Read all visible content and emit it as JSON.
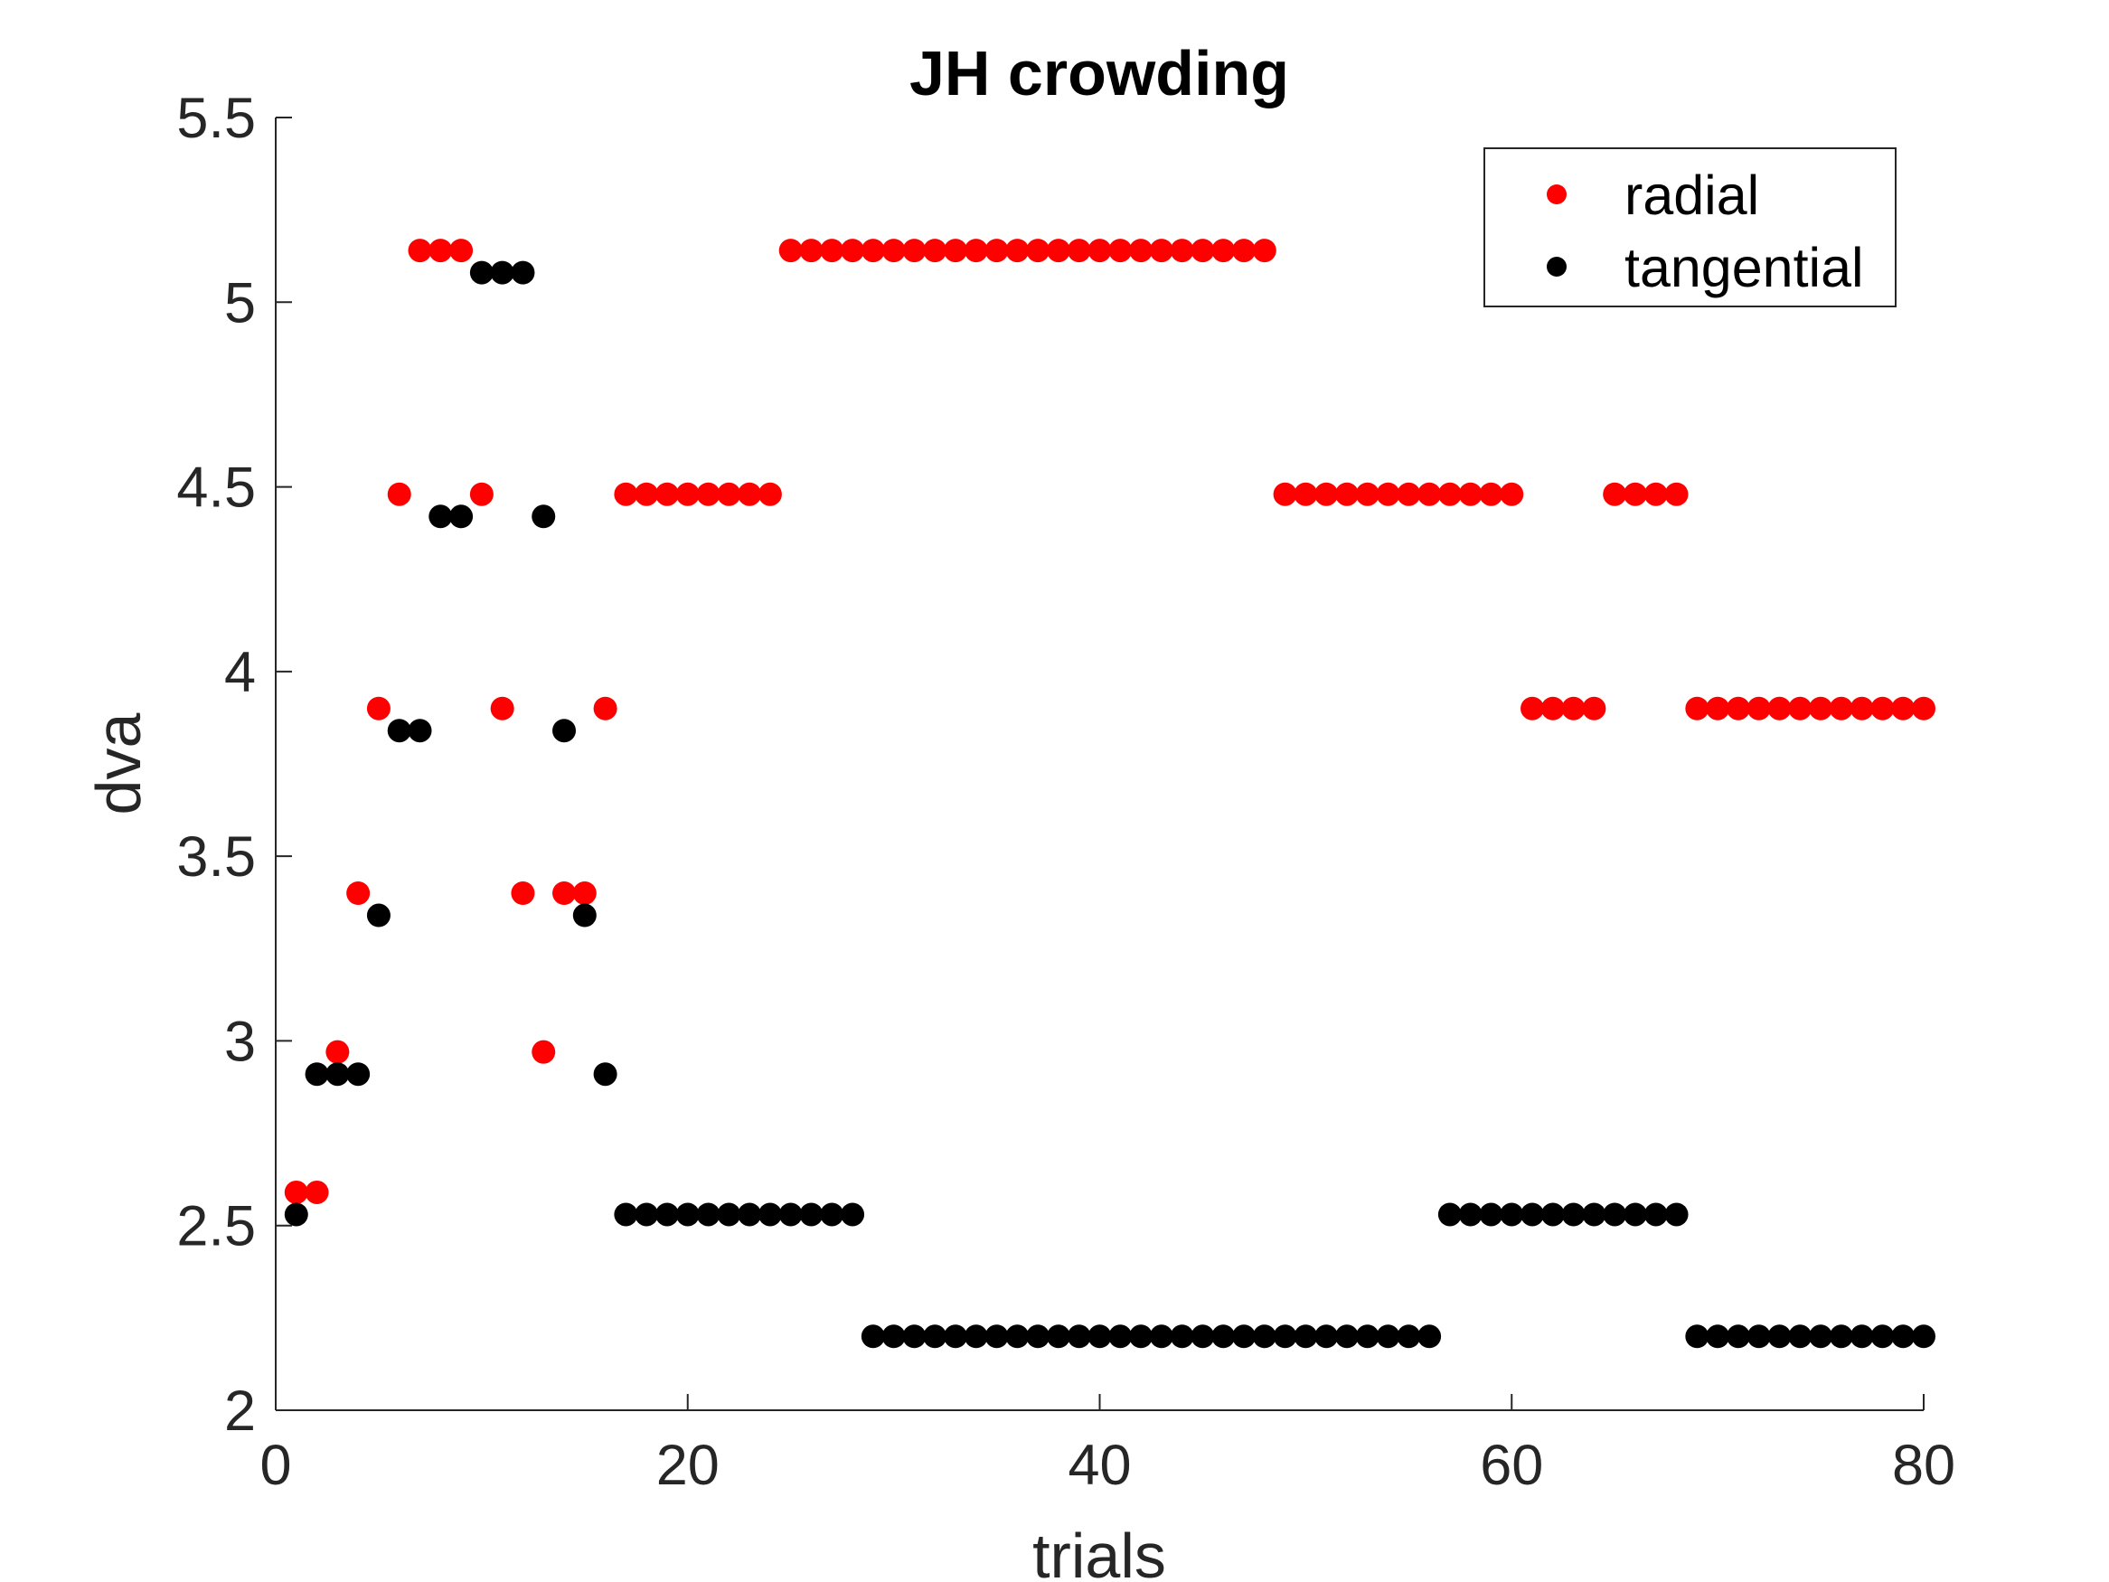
{
  "chart_data": {
    "type": "scatter",
    "title": "JH crowding",
    "xlabel": "trials",
    "ylabel": "dva",
    "xlim": [
      0,
      80
    ],
    "ylim": [
      2,
      5.5
    ],
    "x_ticks": [
      0,
      20,
      40,
      60,
      80
    ],
    "y_ticks": [
      2,
      2.5,
      3,
      3.5,
      4,
      4.5,
      5,
      5.5
    ],
    "x_tick_labels": [
      "0",
      "20",
      "40",
      "60",
      "80"
    ],
    "y_tick_labels": [
      "2",
      "2.5",
      "3",
      "3.5",
      "4",
      "4.5",
      "5",
      "5.5"
    ],
    "grid": false,
    "legend_position": "top-right",
    "series": [
      {
        "name": "radial",
        "color": "#ff0000",
        "x": [
          1,
          2,
          3,
          4,
          5,
          6,
          7,
          8,
          9,
          10,
          11,
          12,
          13,
          14,
          15,
          16,
          17,
          18,
          19,
          20,
          21,
          22,
          23,
          24,
          25,
          26,
          27,
          28,
          29,
          30,
          31,
          32,
          33,
          34,
          35,
          36,
          37,
          38,
          39,
          40,
          41,
          42,
          43,
          44,
          45,
          46,
          47,
          48,
          49,
          50,
          51,
          52,
          53,
          54,
          55,
          56,
          57,
          58,
          59,
          60,
          61,
          62,
          63,
          64,
          65,
          66,
          67,
          68,
          69,
          70,
          71,
          72,
          73,
          74,
          75,
          76,
          77,
          78,
          79,
          80
        ],
        "y": [
          2.59,
          2.59,
          2.97,
          3.4,
          3.9,
          4.48,
          5.14,
          5.14,
          5.14,
          4.48,
          3.9,
          3.4,
          2.97,
          3.4,
          3.4,
          3.9,
          4.48,
          4.48,
          4.48,
          4.48,
          4.48,
          4.48,
          4.48,
          4.48,
          5.14,
          5.14,
          5.14,
          5.14,
          5.14,
          5.14,
          5.14,
          5.14,
          5.14,
          5.14,
          5.14,
          5.14,
          5.14,
          5.14,
          5.14,
          5.14,
          5.14,
          5.14,
          5.14,
          5.14,
          5.14,
          5.14,
          5.14,
          5.14,
          4.48,
          4.48,
          4.48,
          4.48,
          4.48,
          4.48,
          4.48,
          4.48,
          4.48,
          4.48,
          4.48,
          4.48,
          3.9,
          3.9,
          3.9,
          3.9,
          4.48,
          4.48,
          4.48,
          4.48,
          3.9,
          3.9,
          3.9,
          3.9,
          3.9,
          3.9,
          3.9,
          3.9,
          3.9,
          3.9,
          3.9,
          3.9
        ]
      },
      {
        "name": "tangential",
        "color": "#000000",
        "x": [
          1,
          2,
          3,
          4,
          5,
          6,
          7,
          8,
          9,
          10,
          11,
          12,
          13,
          14,
          15,
          16,
          17,
          18,
          19,
          20,
          21,
          22,
          23,
          24,
          25,
          26,
          27,
          28,
          29,
          30,
          31,
          32,
          33,
          34,
          35,
          36,
          37,
          38,
          39,
          40,
          41,
          42,
          43,
          44,
          45,
          46,
          47,
          48,
          49,
          50,
          51,
          52,
          53,
          54,
          55,
          56,
          57,
          58,
          59,
          60,
          61,
          62,
          63,
          64,
          65,
          66,
          67,
          68,
          69,
          70,
          71,
          72,
          73,
          74,
          75,
          76,
          77,
          78,
          79,
          80
        ],
        "y": [
          2.53,
          2.91,
          2.91,
          2.91,
          3.34,
          3.84,
          3.84,
          4.42,
          4.42,
          5.08,
          5.08,
          5.08,
          4.42,
          3.84,
          3.34,
          2.91,
          2.53,
          2.53,
          2.53,
          2.53,
          2.53,
          2.53,
          2.53,
          2.53,
          2.53,
          2.53,
          2.53,
          2.53,
          2.2,
          2.2,
          2.2,
          2.2,
          2.2,
          2.2,
          2.2,
          2.2,
          2.2,
          2.2,
          2.2,
          2.2,
          2.2,
          2.2,
          2.2,
          2.2,
          2.2,
          2.2,
          2.2,
          2.2,
          2.2,
          2.2,
          2.2,
          2.2,
          2.2,
          2.2,
          2.2,
          2.2,
          2.53,
          2.53,
          2.53,
          2.53,
          2.53,
          2.53,
          2.53,
          2.53,
          2.53,
          2.53,
          2.53,
          2.53,
          2.2,
          2.2,
          2.2,
          2.2,
          2.2,
          2.2,
          2.2,
          2.2,
          2.2,
          2.2,
          2.2,
          2.2
        ]
      }
    ]
  }
}
